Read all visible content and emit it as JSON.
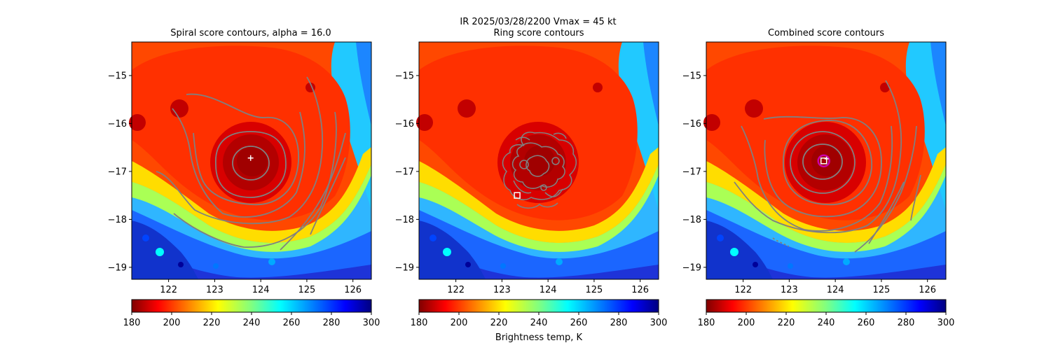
{
  "suptitle": {
    "line1": "IR  2025/03/28/2200    Vmax = 45 kt"
  },
  "colorbar_label": "Brightness temp, K",
  "colormap": "jet",
  "chart_data": [
    {
      "type": "heatmap",
      "title": "Spiral score contours, alpha = 16.0",
      "xlim": [
        121.2,
        126.4
      ],
      "ylim": [
        -19.25,
        -14.3
      ],
      "xticks": [
        122,
        123,
        124,
        125,
        126
      ],
      "yticks": [
        -15,
        -16,
        -17,
        -18,
        -19
      ],
      "center_estimate": {
        "x": 123.78,
        "y": -16.72,
        "marker": "white plus"
      },
      "colorbar": {
        "min": 180,
        "max": 300,
        "ticks": [
          180,
          200,
          220,
          240,
          260,
          280,
          300
        ]
      }
    },
    {
      "type": "heatmap",
      "title": "Ring score contours",
      "xlim": [
        121.2,
        126.4
      ],
      "ylim": [
        -19.25,
        -14.3
      ],
      "xticks": [
        122,
        123,
        124,
        125,
        126
      ],
      "yticks": [
        -15,
        -16,
        -17,
        -18,
        -19
      ],
      "center_estimate": {
        "x": 123.33,
        "y": -17.5,
        "marker": "white square"
      },
      "colorbar": {
        "min": 180,
        "max": 300,
        "ticks": [
          180,
          200,
          220,
          240,
          260,
          280,
          300
        ]
      }
    },
    {
      "type": "heatmap",
      "title": "Combined score contours",
      "xlim": [
        121.2,
        126.4
      ],
      "ylim": [
        -19.25,
        -14.3
      ],
      "xticks": [
        122,
        123,
        124,
        125,
        126
      ],
      "yticks": [
        -15,
        -16,
        -17,
        -18,
        -19
      ],
      "center_estimate": {
        "x": 123.75,
        "y": -16.78,
        "marker": "white square, white plus, magenta circle"
      },
      "colorbar": {
        "min": 180,
        "max": 300,
        "ticks": [
          180,
          200,
          220,
          240,
          260,
          280,
          300
        ]
      }
    }
  ]
}
